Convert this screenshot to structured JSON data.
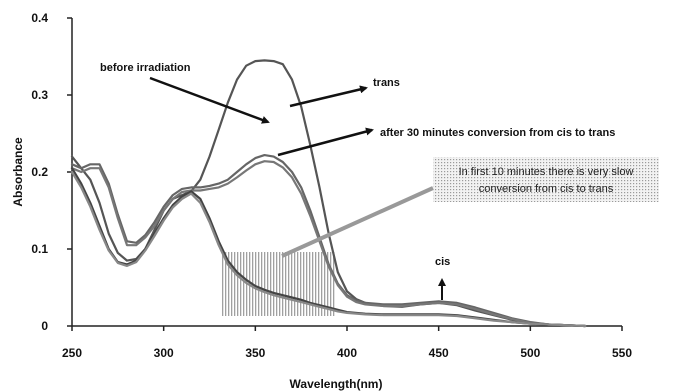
{
  "chart_data": {
    "type": "line",
    "title": "",
    "xlabel": "Wavelength(nm)",
    "ylabel": "Absorbance",
    "xlim": [
      250,
      550
    ],
    "ylim": [
      0,
      0.4
    ],
    "xticks": [
      250,
      300,
      350,
      400,
      450,
      500,
      550
    ],
    "yticks": [
      0,
      0.1,
      0.2,
      0.3,
      0.4
    ],
    "ytick_labels": [
      "0",
      "0.1",
      "0.2",
      "0.3",
      "0.4"
    ],
    "grid": false,
    "series": [
      {
        "color": "#555555",
        "x": [
          250,
          255,
          260,
          265,
          270,
          275,
          280,
          285,
          290,
          295,
          300,
          305,
          310,
          315,
          320,
          325,
          330,
          335,
          340,
          345,
          350,
          355,
          360,
          365,
          370,
          375,
          380,
          385,
          390,
          395,
          400,
          405,
          410,
          420,
          430,
          440,
          450,
          460,
          470,
          480,
          490,
          500,
          510,
          520,
          530
        ],
        "y": [
          0.22,
          0.205,
          0.19,
          0.16,
          0.12,
          0.095,
          0.085,
          0.087,
          0.1,
          0.125,
          0.15,
          0.165,
          0.17,
          0.175,
          0.19,
          0.22,
          0.255,
          0.29,
          0.32,
          0.338,
          0.344,
          0.345,
          0.344,
          0.34,
          0.32,
          0.285,
          0.235,
          0.18,
          0.12,
          0.07,
          0.045,
          0.035,
          0.03,
          0.026,
          0.025,
          0.028,
          0.03,
          0.027,
          0.02,
          0.014,
          0.008,
          0.004,
          0.002,
          0.001,
          0.0
        ]
      },
      {
        "color": "#666666",
        "x": [
          250,
          255,
          260,
          265,
          270,
          275,
          280,
          285,
          290,
          295,
          300,
          305,
          310,
          315,
          320,
          325,
          330,
          335,
          340,
          345,
          350,
          355,
          360,
          365,
          370,
          375,
          380,
          385,
          390,
          395,
          400,
          405,
          410,
          420,
          430,
          440,
          450,
          460,
          470,
          480,
          490,
          500,
          510,
          520,
          530
        ],
        "y": [
          0.21,
          0.205,
          0.21,
          0.21,
          0.185,
          0.145,
          0.11,
          0.108,
          0.118,
          0.135,
          0.155,
          0.17,
          0.178,
          0.18,
          0.18,
          0.182,
          0.185,
          0.19,
          0.2,
          0.21,
          0.218,
          0.222,
          0.22,
          0.213,
          0.2,
          0.18,
          0.15,
          0.115,
          0.08,
          0.055,
          0.04,
          0.033,
          0.03,
          0.028,
          0.028,
          0.03,
          0.032,
          0.03,
          0.024,
          0.017,
          0.01,
          0.005,
          0.002,
          0.001,
          0.0
        ]
      },
      {
        "color": "#777777",
        "x": [
          250,
          255,
          260,
          265,
          270,
          275,
          280,
          285,
          290,
          295,
          300,
          305,
          310,
          315,
          320,
          325,
          330,
          335,
          340,
          345,
          350,
          355,
          360,
          365,
          370,
          375,
          380,
          385,
          390,
          395,
          400,
          405,
          410,
          420,
          430,
          440,
          450,
          460,
          470,
          480,
          490,
          500,
          510,
          520,
          530
        ],
        "y": [
          0.205,
          0.2,
          0.205,
          0.205,
          0.18,
          0.14,
          0.105,
          0.105,
          0.115,
          0.13,
          0.15,
          0.165,
          0.174,
          0.176,
          0.176,
          0.178,
          0.18,
          0.185,
          0.193,
          0.202,
          0.21,
          0.214,
          0.213,
          0.206,
          0.193,
          0.172,
          0.143,
          0.11,
          0.077,
          0.053,
          0.038,
          0.031,
          0.028,
          0.026,
          0.026,
          0.028,
          0.03,
          0.028,
          0.022,
          0.015,
          0.009,
          0.004,
          0.002,
          0.001,
          0.0
        ]
      },
      {
        "color": "#444444",
        "x": [
          250,
          255,
          260,
          265,
          270,
          275,
          280,
          285,
          290,
          295,
          300,
          305,
          310,
          315,
          320,
          325,
          330,
          335,
          340,
          345,
          350,
          355,
          360,
          365,
          370,
          375,
          380,
          385,
          390,
          395,
          400,
          410,
          420,
          430,
          440,
          450,
          460,
          470,
          480,
          490,
          500,
          510,
          520,
          530
        ],
        "y": [
          0.205,
          0.185,
          0.16,
          0.13,
          0.1,
          0.083,
          0.08,
          0.085,
          0.1,
          0.12,
          0.14,
          0.157,
          0.168,
          0.175,
          0.165,
          0.14,
          0.11,
          0.085,
          0.07,
          0.06,
          0.052,
          0.047,
          0.043,
          0.04,
          0.037,
          0.034,
          0.03,
          0.027,
          0.024,
          0.021,
          0.018,
          0.016,
          0.015,
          0.015,
          0.015,
          0.015,
          0.014,
          0.011,
          0.008,
          0.005,
          0.003,
          0.002,
          0.001,
          0.0
        ]
      },
      {
        "color": "#888888",
        "x": [
          250,
          255,
          260,
          265,
          270,
          275,
          280,
          285,
          290,
          295,
          300,
          305,
          310,
          315,
          320,
          325,
          330,
          335,
          340,
          345,
          350,
          355,
          360,
          365,
          370,
          375,
          380,
          385,
          390,
          395,
          400,
          410,
          420,
          430,
          440,
          450,
          460,
          470,
          480,
          490,
          500,
          510,
          520,
          530
        ],
        "y": [
          0.2,
          0.18,
          0.155,
          0.125,
          0.098,
          0.082,
          0.078,
          0.083,
          0.098,
          0.117,
          0.137,
          0.154,
          0.165,
          0.172,
          0.16,
          0.135,
          0.105,
          0.08,
          0.066,
          0.056,
          0.049,
          0.044,
          0.04,
          0.037,
          0.034,
          0.031,
          0.028,
          0.025,
          0.022,
          0.019,
          0.017,
          0.015,
          0.014,
          0.014,
          0.014,
          0.014,
          0.013,
          0.01,
          0.007,
          0.005,
          0.003,
          0.002,
          0.001,
          0.0
        ]
      }
    ],
    "annotations": [
      {
        "text": "before irradiation"
      },
      {
        "text": "trans"
      },
      {
        "text": "after 30 minutes conversion from cis to trans"
      },
      {
        "text": "In first 10 minutes there is very slow"
      },
      {
        "text": "conversion from cis to trans"
      },
      {
        "text": "cis"
      }
    ]
  }
}
